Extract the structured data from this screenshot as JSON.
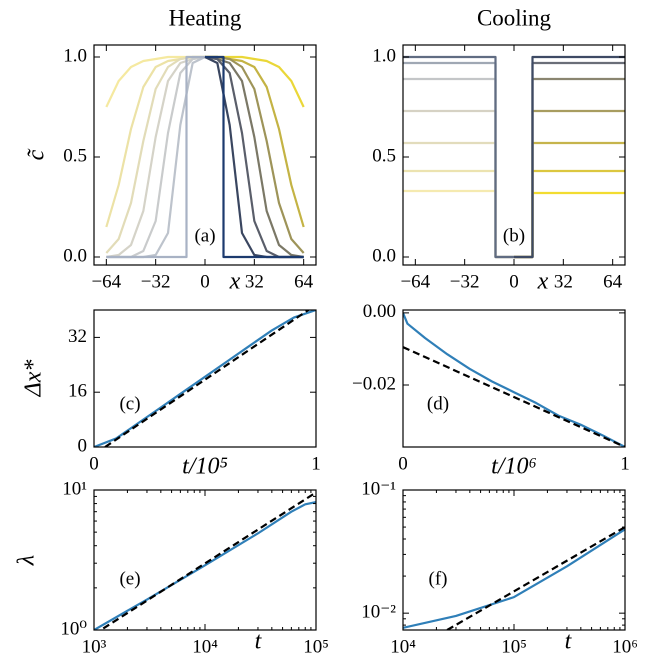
{
  "chart_data": [
    {
      "type": "line",
      "title": "Heating",
      "xlabel": "x",
      "ylabel": "c̃",
      "annotation": "(a)",
      "xlim": [
        -72,
        72
      ],
      "ylim": [
        -0.04,
        1.06
      ],
      "xticks": [
        {
          "value": -64,
          "label": "−64"
        },
        {
          "value": -32,
          "label": "−32"
        },
        0,
        32,
        64
      ],
      "yticks": [
        {
          "value": 0,
          "label": "0.0"
        },
        {
          "value": 0.5,
          "label": "0.5"
        },
        {
          "value": 1,
          "label": "1.0"
        }
      ],
      "series": [
        {
          "color": "#f5e9a0",
          "x": [
            -64,
            -56,
            -48,
            -40,
            -32,
            -24,
            -16,
            -8,
            0
          ],
          "values": [
            0.75,
            0.88,
            0.95,
            0.98,
            0.99,
            1.0,
            1.0,
            1.0,
            1.0
          ]
        },
        {
          "color": "#ece2a6",
          "x": [
            -64,
            -56,
            -48,
            -40,
            -32,
            -24,
            -16,
            -8,
            0
          ],
          "values": [
            0.15,
            0.36,
            0.64,
            0.85,
            0.95,
            0.98,
            0.99,
            1.0,
            1.0
          ]
        },
        {
          "color": "#e2dcb8",
          "x": [
            -64,
            -56,
            -48,
            -40,
            -32,
            -24,
            -16,
            -8,
            0
          ],
          "values": [
            0.02,
            0.09,
            0.27,
            0.58,
            0.84,
            0.95,
            0.99,
            1.0,
            1.0
          ]
        },
        {
          "color": "#d5d3c8",
          "x": [
            -64,
            -56,
            -48,
            -40,
            -32,
            -24,
            -16,
            -8,
            0
          ],
          "values": [
            0.0,
            0.01,
            0.06,
            0.23,
            0.6,
            0.88,
            0.97,
            0.99,
            1.0
          ]
        },
        {
          "color": "#c9cbcc",
          "x": [
            -64,
            -56,
            -48,
            -40,
            -32,
            -24,
            -16,
            -8,
            0
          ],
          "values": [
            0.0,
            0.0,
            0.0,
            0.03,
            0.18,
            0.62,
            0.92,
            0.99,
            1.0
          ]
        },
        {
          "color": "#bdc3cc",
          "x": [
            -64,
            -56,
            -48,
            -40,
            -32,
            -24,
            -16,
            -8,
            0
          ],
          "values": [
            0.0,
            0.0,
            0.0,
            0.0,
            0.01,
            0.12,
            0.66,
            0.97,
            1.0
          ]
        },
        {
          "color": "#a8b2c4",
          "x": [
            -64,
            -12,
            -12,
            0
          ],
          "values": [
            0,
            0,
            1,
            1
          ]
        },
        {
          "color": "#ead738",
          "x": [
            0,
            8,
            16,
            24,
            32,
            40,
            48,
            56,
            64
          ],
          "values": [
            1.0,
            1.0,
            1.0,
            1.0,
            0.99,
            0.98,
            0.95,
            0.88,
            0.75
          ]
        },
        {
          "color": "#c4b344",
          "x": [
            0,
            8,
            16,
            24,
            32,
            40,
            48,
            56,
            64
          ],
          "values": [
            1.0,
            1.0,
            0.99,
            0.98,
            0.95,
            0.85,
            0.64,
            0.36,
            0.15
          ]
        },
        {
          "color": "#9e9459",
          "x": [
            0,
            8,
            16,
            24,
            32,
            40,
            48,
            56,
            64
          ],
          "values": [
            1.0,
            1.0,
            0.99,
            0.95,
            0.84,
            0.58,
            0.27,
            0.09,
            0.02
          ]
        },
        {
          "color": "#7b7866",
          "x": [
            0,
            8,
            16,
            24,
            32,
            40,
            48,
            56,
            64
          ],
          "values": [
            1.0,
            0.99,
            0.97,
            0.88,
            0.6,
            0.23,
            0.06,
            0.01,
            0.0
          ]
        },
        {
          "color": "#5a5e6a",
          "x": [
            0,
            8,
            16,
            24,
            32,
            40,
            48,
            56,
            64
          ],
          "values": [
            1.0,
            0.99,
            0.92,
            0.62,
            0.18,
            0.03,
            0.0,
            0.0,
            0.0
          ]
        },
        {
          "color": "#3a4660",
          "x": [
            0,
            8,
            16,
            24,
            32,
            40,
            48,
            56,
            64
          ],
          "values": [
            1.0,
            0.97,
            0.66,
            0.12,
            0.01,
            0.0,
            0.0,
            0.0,
            0.0
          ]
        },
        {
          "color": "#1c3a6e",
          "x": [
            0,
            12,
            12,
            64
          ],
          "values": [
            1,
            1,
            0,
            0
          ]
        }
      ]
    },
    {
      "type": "line",
      "title": "Cooling",
      "xlabel": "x",
      "annotation": "(b)",
      "xlim": [
        -72,
        72
      ],
      "ylim": [
        -0.04,
        1.06
      ],
      "xticks": [
        {
          "value": -64,
          "label": "−64"
        },
        {
          "value": -32,
          "label": "−32"
        },
        0,
        32,
        64
      ],
      "yticks": [
        {
          "value": 0,
          "label": "0.0"
        },
        {
          "value": 0.5,
          "label": "0.5"
        },
        {
          "value": 1,
          "label": "1.0"
        }
      ],
      "series": [
        {
          "color": "#f5eab0",
          "x": [
            -72,
            -12,
            -12,
            0
          ],
          "values": [
            0.33,
            0.33,
            0,
            0
          ]
        },
        {
          "color": "#ece3b0",
          "x": [
            -72,
            -12,
            -12,
            0
          ],
          "values": [
            0.43,
            0.43,
            0,
            0
          ]
        },
        {
          "color": "#e2dcbc",
          "x": [
            -72,
            -12,
            -12,
            0
          ],
          "values": [
            0.57,
            0.57,
            0,
            0
          ]
        },
        {
          "color": "#d6d2c4",
          "x": [
            -72,
            -12,
            -12,
            0
          ],
          "values": [
            0.73,
            0.73,
            0,
            0
          ]
        },
        {
          "color": "#c4c6c8",
          "x": [
            -72,
            -12,
            -12,
            0
          ],
          "values": [
            0.89,
            0.89,
            0,
            0
          ]
        },
        {
          "color": "#a0a8b4",
          "x": [
            -72,
            -12,
            -12,
            0
          ],
          "values": [
            0.97,
            0.97,
            0,
            0
          ]
        },
        {
          "color": "#606c82",
          "x": [
            -72,
            -12,
            -12,
            0
          ],
          "values": [
            1.0,
            1.0,
            0,
            0
          ]
        },
        {
          "color": "#f2dc30",
          "x": [
            0,
            12,
            12,
            72
          ],
          "values": [
            0,
            0,
            0.32,
            0.32
          ]
        },
        {
          "color": "#dcc73f",
          "x": [
            0,
            12,
            12,
            72
          ],
          "values": [
            0,
            0,
            0.43,
            0.43
          ]
        },
        {
          "color": "#c6b44c",
          "x": [
            0,
            12,
            12,
            72
          ],
          "values": [
            0,
            0,
            0.57,
            0.57
          ]
        },
        {
          "color": "#a89d60",
          "x": [
            0,
            12,
            12,
            72
          ],
          "values": [
            0,
            0,
            0.73,
            0.73
          ]
        },
        {
          "color": "#8a8570",
          "x": [
            0,
            12,
            12,
            72
          ],
          "values": [
            0,
            0,
            0.89,
            0.89
          ]
        },
        {
          "color": "#6a6e78",
          "x": [
            0,
            12,
            12,
            72
          ],
          "values": [
            0,
            0,
            0.97,
            0.97
          ]
        },
        {
          "color": "#3e4a64",
          "x": [
            0,
            12,
            12,
            72
          ],
          "values": [
            0,
            0,
            1.0,
            1.0
          ]
        }
      ]
    },
    {
      "type": "line",
      "xlabel": "t/10⁵",
      "ylabel": "Δx*",
      "annotation": "(c)",
      "xlim": [
        0,
        1
      ],
      "ylim": [
        0,
        40
      ],
      "xticks": [
        0,
        1
      ],
      "yticks": [
        0,
        16,
        32
      ],
      "series": [
        {
          "color": "#2f7fb8",
          "x": [
            0,
            0.1,
            0.2,
            0.3,
            0.4,
            0.5,
            0.6,
            0.7,
            0.8,
            0.9,
            1.0
          ],
          "values": [
            0,
            2.5,
            7,
            11.5,
            16,
            20.5,
            25,
            29.5,
            34,
            37.8,
            40
          ]
        },
        {
          "color": "#000000",
          "linestyle": "dashed",
          "x": [
            0.05,
            1
          ],
          "values": [
            0,
            41.5
          ]
        }
      ]
    },
    {
      "type": "line",
      "xlabel": "t/10⁶",
      "annotation": "(d)",
      "xlim": [
        0,
        1
      ],
      "ylim": [
        -0.0372,
        0.0008
      ],
      "xticks": [
        0,
        1
      ],
      "yticks": [
        {
          "value": -0.02,
          "label": "−0.02"
        },
        {
          "value": 0,
          "label": "0.00"
        }
      ],
      "series": [
        {
          "color": "#2f7fb8",
          "x": [
            0,
            0.02,
            0.1,
            0.2,
            0.3,
            0.4,
            0.5,
            0.6,
            0.7,
            0.8,
            0.9,
            1.0
          ],
          "values": [
            0,
            -0.003,
            -0.007,
            -0.0115,
            -0.0155,
            -0.019,
            -0.022,
            -0.025,
            -0.0285,
            -0.031,
            -0.034,
            -0.0372
          ]
        },
        {
          "color": "#000000",
          "linestyle": "dashed",
          "x": [
            0,
            1
          ],
          "values": [
            -0.0095,
            -0.0372
          ]
        }
      ]
    },
    {
      "type": "line",
      "xscale": "log",
      "yscale": "log",
      "xlabel": "t",
      "ylabel": "λ",
      "annotation": "(e)",
      "xlim": [
        1000,
        100000
      ],
      "ylim": [
        1,
        10
      ],
      "xticks": [
        {
          "value": 1000,
          "label": "10³"
        },
        {
          "value": 10000,
          "label": "10⁴"
        },
        {
          "value": 100000,
          "label": "10⁵"
        }
      ],
      "yticks": [
        {
          "value": 1,
          "label": "10⁰"
        },
        {
          "value": 10,
          "label": "10¹"
        }
      ],
      "xminorticks": [
        2000,
        3000,
        4000,
        5000,
        6000,
        7000,
        8000,
        9000,
        20000,
        30000,
        40000,
        50000,
        60000,
        70000,
        80000,
        90000
      ],
      "yminorticks": [
        2,
        3,
        4,
        5,
        6,
        7,
        8,
        9
      ],
      "series": [
        {
          "color": "#2f7fb8",
          "x": [
            1000,
            3000,
            10000,
            30000,
            60000,
            80000,
            100000
          ],
          "values": [
            1.0,
            1.65,
            2.9,
            4.9,
            7.0,
            7.9,
            8.2
          ]
        },
        {
          "color": "#000000",
          "linestyle": "dashed",
          "x": [
            1000,
            100000
          ],
          "values": [
            0.93,
            9.6
          ]
        }
      ]
    },
    {
      "type": "line",
      "xscale": "log",
      "yscale": "log",
      "xlabel": "t",
      "annotation": "(f)",
      "xlim": [
        10000,
        1000000
      ],
      "ylim": [
        0.0073,
        0.1
      ],
      "xticks": [
        {
          "value": 10000,
          "label": "10⁴"
        },
        {
          "value": 100000,
          "label": "10⁵"
        },
        {
          "value": 1000000,
          "label": "10⁶"
        }
      ],
      "yticks": [
        {
          "value": 0.01,
          "label": "10⁻²"
        },
        {
          "value": 0.1,
          "label": "10⁻¹"
        }
      ],
      "xminorticks": [
        20000,
        30000,
        40000,
        50000,
        60000,
        70000,
        80000,
        90000,
        200000,
        300000,
        400000,
        500000,
        600000,
        700000,
        800000,
        900000
      ],
      "yminorticks": [
        0.008,
        0.009,
        0.02,
        0.03,
        0.04,
        0.05,
        0.06,
        0.07,
        0.08,
        0.09
      ],
      "series": [
        {
          "color": "#2f7fb8",
          "x": [
            10000,
            30000,
            100000,
            300000,
            1000000
          ],
          "values": [
            0.0076,
            0.0095,
            0.0135,
            0.024,
            0.048
          ]
        },
        {
          "color": "#000000",
          "linestyle": "dashed",
          "x": [
            25000,
            1000000
          ],
          "values": [
            0.0073,
            0.05
          ]
        }
      ]
    }
  ]
}
